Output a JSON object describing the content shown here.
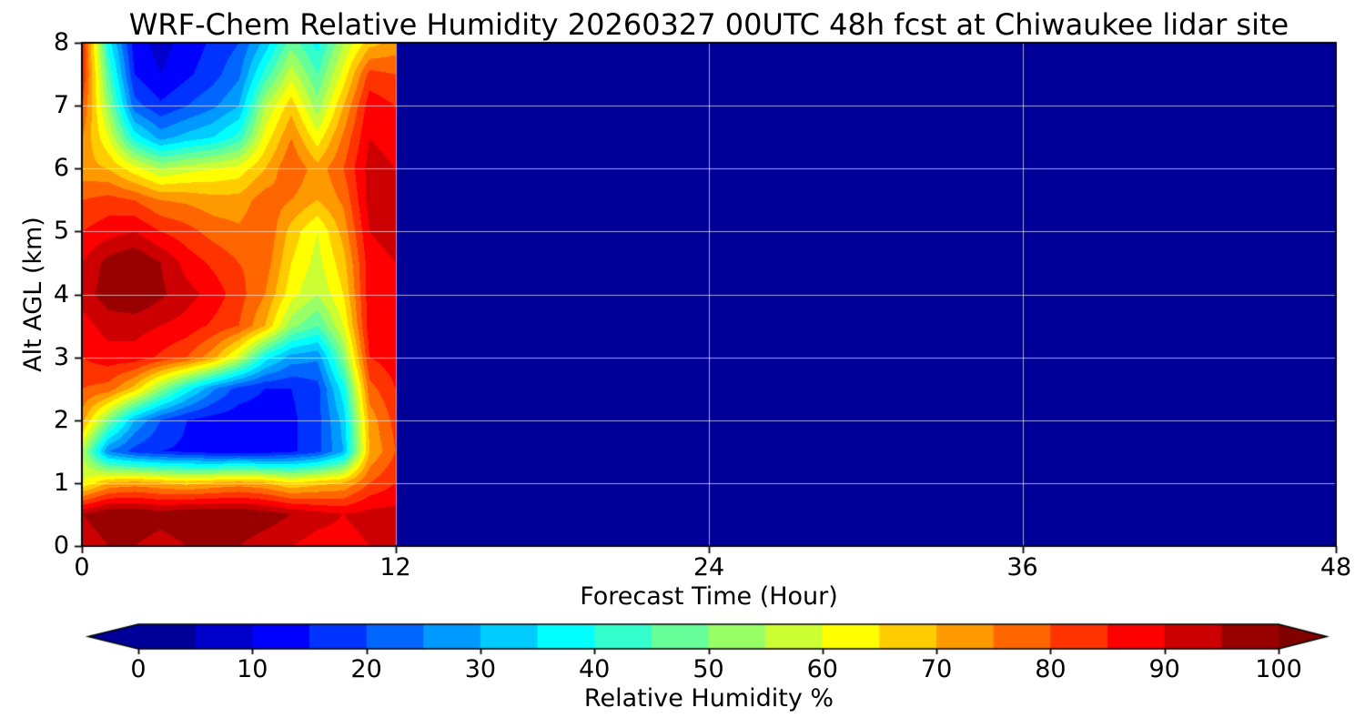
{
  "chart_data": {
    "type": "heatmap",
    "title": "WRF-Chem Relative Humidity 20260327 00UTC 48h fcst at Chiwaukee lidar site",
    "xlabel": "Forecast Time (Hour)",
    "ylabel": "Alt AGL (km)",
    "colorbar_label": "Relative Humidity %",
    "colormap": "jet",
    "grid": true,
    "xlim": [
      0,
      48
    ],
    "ylim": [
      0,
      8
    ],
    "vmin": 0,
    "vmax": 100,
    "contour_step": 5,
    "x_ticks": [
      0,
      12,
      24,
      36,
      48
    ],
    "y_ticks": [
      0,
      1,
      2,
      3,
      4,
      5,
      6,
      7,
      8
    ],
    "colorbar_ticks": [
      0,
      10,
      20,
      30,
      40,
      50,
      60,
      70,
      80,
      90,
      100
    ],
    "data_end_hour": 12,
    "background_value": 0,
    "hours": [
      0,
      1,
      2,
      3,
      4,
      5,
      6,
      7,
      8,
      9,
      10,
      11,
      12
    ],
    "altitudes_km": [
      0,
      0.5,
      1,
      1.5,
      2,
      2.5,
      3,
      3.5,
      4,
      4.5,
      5,
      5.5,
      6,
      6.5,
      7,
      7.5,
      8
    ],
    "rh_values_by_altitude": [
      [
        90,
        95,
        95,
        92,
        95,
        97,
        95,
        92,
        90,
        88,
        88,
        90,
        90
      ],
      [
        95,
        100,
        100,
        98,
        100,
        100,
        100,
        98,
        95,
        92,
        90,
        92,
        92
      ],
      [
        60,
        70,
        72,
        70,
        68,
        70,
        72,
        70,
        65,
        68,
        70,
        80,
        85
      ],
      [
        55,
        25,
        18,
        15,
        14,
        12,
        12,
        12,
        14,
        18,
        30,
        70,
        80
      ],
      [
        72,
        50,
        30,
        20,
        15,
        13,
        12,
        12,
        14,
        18,
        32,
        72,
        82
      ],
      [
        80,
        78,
        68,
        52,
        38,
        26,
        18,
        15,
        15,
        18,
        38,
        78,
        85
      ],
      [
        85,
        88,
        88,
        84,
        80,
        72,
        58,
        38,
        28,
        26,
        50,
        85,
        88
      ],
      [
        88,
        92,
        92,
        90,
        88,
        84,
        80,
        70,
        52,
        45,
        60,
        88,
        90
      ],
      [
        92,
        98,
        100,
        96,
        92,
        88,
        82,
        75,
        62,
        55,
        65,
        88,
        90
      ],
      [
        90,
        97,
        100,
        95,
        88,
        84,
        80,
        78,
        65,
        58,
        68,
        88,
        90
      ],
      [
        85,
        88,
        90,
        85,
        82,
        78,
        76,
        80,
        68,
        60,
        72,
        90,
        92
      ],
      [
        80,
        82,
        80,
        75,
        74,
        72,
        72,
        78,
        75,
        70,
        76,
        92,
        92
      ],
      [
        72,
        70,
        62,
        55,
        58,
        60,
        62,
        70,
        80,
        72,
        80,
        92,
        90
      ],
      [
        75,
        60,
        38,
        28,
        32,
        35,
        42,
        62,
        75,
        62,
        76,
        90,
        88
      ],
      [
        80,
        52,
        22,
        16,
        20,
        24,
        30,
        55,
        68,
        52,
        70,
        88,
        85
      ],
      [
        85,
        45,
        15,
        10,
        14,
        18,
        24,
        42,
        58,
        45,
        62,
        82,
        80
      ],
      [
        85,
        38,
        12,
        8,
        12,
        16,
        20,
        32,
        48,
        38,
        55,
        68,
        72
      ]
    ]
  }
}
